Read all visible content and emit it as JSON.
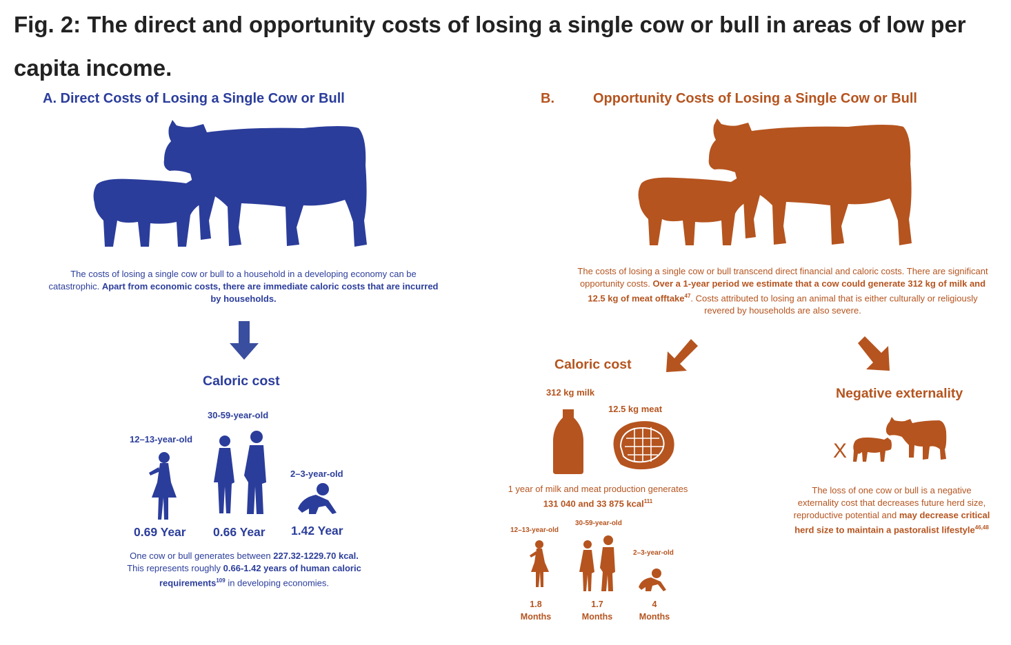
{
  "figure": {
    "title": "Fig. 2: The direct and opportunity costs of losing a single cow or bull in areas of low per capita income."
  },
  "colors": {
    "blue": "#2b3d9b",
    "orange": "#b5541f",
    "title_text": "#222222"
  },
  "panel_a": {
    "title": "A. Direct Costs of Losing a Single Cow or Bull",
    "intro_plain": "The costs of losing a single cow or bull to a household in a developing economy can be catastrophic. ",
    "intro_bold": "Apart from economic costs, there are immediate caloric costs that are incurred by households.",
    "caloric_cost_label": "Caloric cost",
    "groups": [
      {
        "age": "12–13-year-old",
        "value": "0.69 Year"
      },
      {
        "age": "30-59-year-old",
        "value": "0.66 Year"
      },
      {
        "age": "2–3-year-old",
        "value": "1.42 Year"
      }
    ],
    "summary": {
      "p1": "One cow or bull generates between ",
      "b1": "227.32-1229.70 kcal.",
      "p2": " This represents roughly ",
      "b2": "0.66-1.42 years of human caloric requirements",
      "ref": "109",
      "p3": " in developing economies."
    }
  },
  "panel_b": {
    "label": "B.",
    "title": "Opportunity Costs of Losing a Single Cow or Bull",
    "intro_plain1": "The costs of losing a single cow or bull transcend direct financial and caloric costs. There are significant opportunity costs. ",
    "intro_bold": "Over a 1-year period we estimate that a cow could generate 312 kg of milk and 12.5 kg of meat offtake",
    "intro_ref": "47",
    "intro_plain2": ". Costs attributed to losing an animal that is either culturally or religiously revered by households are also severe.",
    "caloric_cost_label": "Caloric cost",
    "milk_label": "312 kg milk",
    "meat_label": "12.5 kg meat",
    "production_plain": "1 year of milk and meat production generates ",
    "production_bold": "131 040 and 33 875 kcal",
    "production_ref": "111",
    "groups": [
      {
        "age": "12–13-year-old",
        "value": "1.8",
        "unit": "Months"
      },
      {
        "age": "30-59-year-old",
        "value": "1.7",
        "unit": "Months"
      },
      {
        "age": "2–3-year-old",
        "value": "4",
        "unit": "Months"
      }
    ],
    "externality_label": "Negative externality",
    "x_mark": "X",
    "externality_plain": "The loss of one cow or bull is a negative externality cost that decreases future herd size, reproductive potential and ",
    "externality_bold": "may decrease critical herd size to maintain a pastoralist lifestyle",
    "externality_ref": "46,48"
  }
}
